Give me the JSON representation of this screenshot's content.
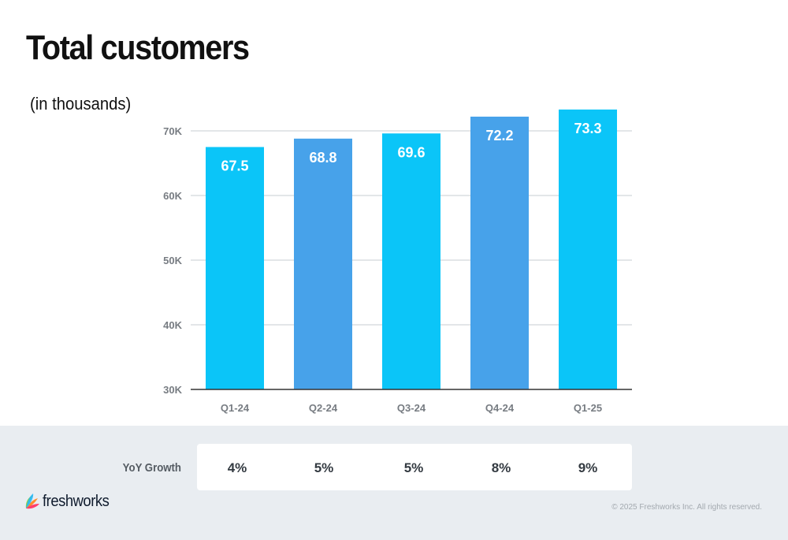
{
  "slide": {
    "title": "Total customers",
    "subtitle": "(in thousands)"
  },
  "chart_data": {
    "type": "bar",
    "categories": [
      "Q1-24",
      "Q2-24",
      "Q3-24",
      "Q4-24",
      "Q1-25"
    ],
    "values": [
      67.5,
      68.8,
      69.6,
      72.2,
      73.3
    ],
    "data_labels": [
      "67.5",
      "68.8",
      "69.6",
      "72.2",
      "73.3"
    ],
    "bar_colors": [
      "#0bc5f8",
      "#47a2ea",
      "#0bc5f8",
      "#47a2ea",
      "#0bc5f8"
    ],
    "title": "Total customers",
    "subtitle": "(in thousands)",
    "xlabel": "",
    "ylabel": "",
    "ylim": [
      30,
      70
    ],
    "yticks": [
      30,
      40,
      50,
      60,
      70
    ],
    "ytick_labels": [
      "30K",
      "40K",
      "50K",
      "60K",
      "70K"
    ],
    "grid": true,
    "legend": "none"
  },
  "yoy": {
    "label": "YoY Growth",
    "values": [
      "4%",
      "5%",
      "5%",
      "8%",
      "9%"
    ]
  },
  "footer": {
    "brand": "freshworks",
    "copyright": "© 2025 Freshworks Inc. All rights reserved."
  },
  "colors": {
    "bar_primary": "#0bc5f8",
    "bar_secondary": "#47a2ea",
    "gridline": "#d2d6da",
    "baseline": "#333333",
    "tick_text": "#777c82",
    "band": "#e9edf1"
  },
  "icons": {
    "logo": "freshworks-logo-icon"
  }
}
